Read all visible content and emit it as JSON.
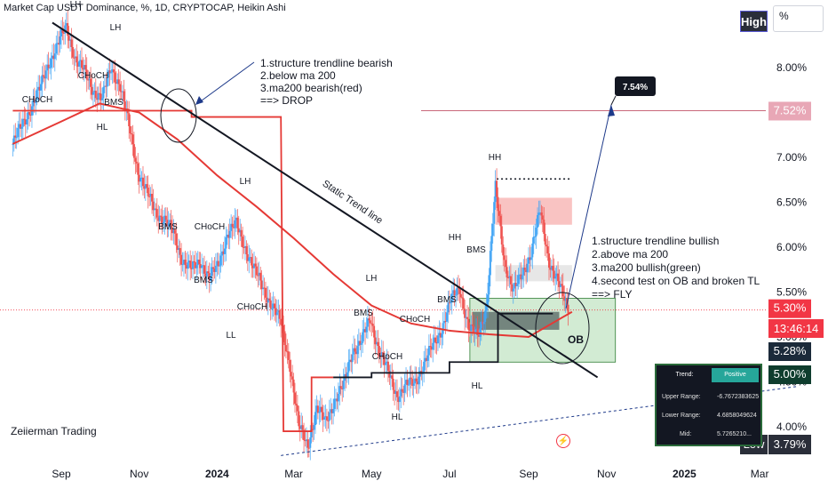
{
  "title": "Market Cap USDT Dominance, %, 1D, CRYPTOCAP, Heikin Ashi",
  "watermark": "Zeiierman Trading",
  "buttons": {
    "high": "High",
    "low": "Low",
    "scale_unit": "%"
  },
  "price_labels": {
    "target_box": "7.54%",
    "target_line": "7.52%",
    "current": "5.30%",
    "countdown": "13:46:14",
    "ma200": "5.28%",
    "ob_level": "5.00%",
    "low": "3.79%"
  },
  "notes": {
    "bearish": [
      "1.structure trendline bearish",
      "2.below ma 200",
      "3.ma200 bearish(red)",
      "==> DROP"
    ],
    "bullish": [
      "1.structure trendline bullish",
      "2.above ma 200",
      "3.ma200 bullish(green)",
      "4.second test on OB and broken TL",
      "==> FLY"
    ]
  },
  "trend_table": {
    "header_left": "Trend:",
    "header_right": "Positive",
    "rows": [
      {
        "label": "Upper Range:",
        "value": "-6.7672383625"
      },
      {
        "label": "Lower Range:",
        "value": "4.6858049624"
      },
      {
        "label": "Mid:",
        "value": "5.7265210..."
      }
    ]
  },
  "colors": {
    "bull": "#26a69a",
    "bear": "#ef5350",
    "ma_red": "#e53935",
    "ma_green": "#3d5a4c",
    "text": "#131722",
    "accent": "#1e3a8a"
  },
  "chart_data": {
    "type": "candlestick",
    "title": "Market Cap USDT Dominance, %, 1D, CRYPTOCAP, Heikin Ashi",
    "y_unit": "%",
    "y_ticks": [
      "4.00%",
      "4.50%",
      "5.00%",
      "5.50%",
      "6.00%",
      "6.50%",
      "7.00%",
      "7.50%",
      "8.00%"
    ],
    "x_ticks": [
      "Sep",
      "Nov",
      "2024",
      "Mar",
      "May",
      "Jul",
      "Sep",
      "Nov",
      "2025",
      "Mar"
    ],
    "close_path": [
      [
        "2023-07-25",
        7.15
      ],
      [
        "2023-08-01",
        7.35
      ],
      [
        "2023-08-08",
        7.55
      ],
      [
        "2023-08-15",
        7.75
      ],
      [
        "2023-08-22",
        8.05
      ],
      [
        "2023-08-29",
        8.25
      ],
      [
        "2023-09-05",
        8.45
      ],
      [
        "2023-09-12",
        8.1
      ],
      [
        "2023-09-19",
        7.95
      ],
      [
        "2023-09-26",
        7.75
      ],
      [
        "2023-10-03",
        7.65
      ],
      [
        "2023-10-10",
        8.0
      ],
      [
        "2023-10-17",
        7.8
      ],
      [
        "2023-10-24",
        7.35
      ],
      [
        "2023-10-31",
        6.85
      ],
      [
        "2023-11-07",
        6.6
      ],
      [
        "2023-11-14",
        6.4
      ],
      [
        "2023-11-21",
        6.3
      ],
      [
        "2023-11-28",
        6.15
      ],
      [
        "2023-12-05",
        5.85
      ],
      [
        "2023-12-12",
        5.75
      ],
      [
        "2023-12-19",
        5.85
      ],
      [
        "2023-12-26",
        5.65
      ],
      [
        "2024-01-02",
        5.8
      ],
      [
        "2024-01-09",
        6.15
      ],
      [
        "2024-01-16",
        6.25
      ],
      [
        "2024-01-23",
        6.0
      ],
      [
        "2024-01-30",
        5.75
      ],
      [
        "2024-02-06",
        5.55
      ],
      [
        "2024-02-13",
        5.35
      ],
      [
        "2024-02-20",
        5.15
      ],
      [
        "2024-02-27",
        4.7
      ],
      [
        "2024-03-05",
        4.0
      ],
      [
        "2024-03-12",
        3.79
      ],
      [
        "2024-03-19",
        4.2
      ],
      [
        "2024-03-26",
        4.05
      ],
      [
        "2024-04-02",
        4.3
      ],
      [
        "2024-04-09",
        4.45
      ],
      [
        "2024-04-16",
        4.85
      ],
      [
        "2024-04-23",
        4.95
      ],
      [
        "2024-04-30",
        5.2
      ],
      [
        "2024-05-07",
        4.85
      ],
      [
        "2024-05-14",
        4.6
      ],
      [
        "2024-05-21",
        4.35
      ],
      [
        "2024-05-28",
        4.45
      ],
      [
        "2024-06-04",
        4.5
      ],
      [
        "2024-06-11",
        4.7
      ],
      [
        "2024-06-18",
        4.9
      ],
      [
        "2024-06-25",
        5.1
      ],
      [
        "2024-07-02",
        5.4
      ],
      [
        "2024-07-09",
        5.55
      ],
      [
        "2024-07-16",
        5.1
      ],
      [
        "2024-07-23",
        5.0
      ],
      [
        "2024-07-30",
        5.35
      ],
      [
        "2024-08-06",
        6.65
      ],
      [
        "2024-08-13",
        5.85
      ],
      [
        "2024-08-20",
        5.5
      ],
      [
        "2024-08-27",
        5.7
      ],
      [
        "2024-09-03",
        5.95
      ],
      [
        "2024-09-10",
        6.4
      ],
      [
        "2024-09-17",
        5.85
      ],
      [
        "2024-09-24",
        5.6
      ],
      [
        "2024-10-01",
        5.35
      ],
      [
        "2024-10-05",
        5.3
      ]
    ],
    "ma200": [
      [
        "2023-07-25",
        7.15
      ],
      [
        "2023-09-01",
        7.4
      ],
      [
        "2023-10-01",
        7.6
      ],
      [
        "2023-11-01",
        7.5
      ],
      [
        "2023-12-01",
        7.2
      ],
      [
        "2024-01-01",
        6.8
      ],
      [
        "2024-02-01",
        6.45
      ],
      [
        "2024-03-01",
        6.1
      ],
      [
        "2024-04-01",
        5.7
      ],
      [
        "2024-05-01",
        5.35
      ],
      [
        "2024-06-01",
        5.15
      ],
      [
        "2024-07-01",
        5.07
      ],
      [
        "2024-08-01",
        5.03
      ],
      [
        "2024-09-01",
        5.0
      ],
      [
        "2024-10-05",
        5.28
      ]
    ],
    "trendline_bearish": [
      [
        "2023-08-25",
        8.5
      ],
      [
        "2024-10-25",
        4.55
      ]
    ],
    "trendline_support": [
      [
        "2024-02-20",
        3.68
      ],
      [
        "2025-03-31",
        4.45
      ]
    ],
    "target_level": 7.52,
    "current_level": 5.3,
    "ob_zone": {
      "from": "2024-08-01",
      "to": "2024-11-01",
      "low": 5.0,
      "high": 5.3
    },
    "structure_labels": [
      "LH",
      "LH",
      "CHoCH",
      "CHoCH",
      "BMS",
      "HL",
      "BMS",
      "BMS",
      "CHoCH",
      "LH",
      "LL",
      "CHoCH",
      "BMS",
      "CHoCH",
      "CHoCH",
      "LH",
      "HL",
      "HH",
      "BMS",
      "BMS",
      "HH",
      "HL",
      "OB",
      "Static Trend line"
    ],
    "legend": "none",
    "grid": false
  }
}
